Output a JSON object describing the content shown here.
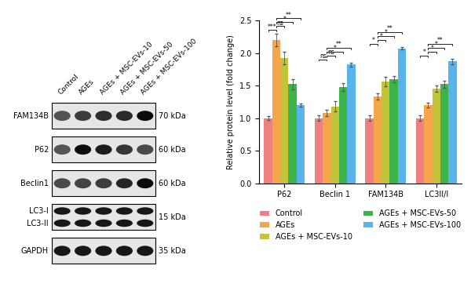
{
  "blot": {
    "lanes": [
      "Control",
      "AGEs",
      "AGEs + MSC-EVs-10",
      "AGEs + MSC-EVs-50",
      "AGEs + MSC-EVs-100"
    ],
    "rows": [
      {
        "labels": [
          "FAM134B"
        ],
        "kda": "70 kDa"
      },
      {
        "labels": [
          "P62"
        ],
        "kda": "60 kDa"
      },
      {
        "labels": [
          "Beclin1"
        ],
        "kda": "60 kDa"
      },
      {
        "labels": [
          "LC3-I",
          "LC3-II"
        ],
        "kda": "15 kDa"
      },
      {
        "labels": [
          "GAPDH"
        ],
        "kda": "35 kDa"
      }
    ]
  },
  "chart_data": {
    "type": "bar",
    "y_label": "Relative protein level (fold change)",
    "categories": [
      "P62",
      "Beclin 1",
      "FAM134B",
      "LC3II/I"
    ],
    "ylim": [
      0,
      2.5
    ],
    "yticks": [
      {
        "value": 0,
        "label": "0.0"
      },
      {
        "value": 0.5,
        "label": "0.5"
      },
      {
        "value": 1.0,
        "label": "1.0"
      },
      {
        "value": 1.5,
        "label": "1.5"
      },
      {
        "value": 2.0,
        "label": "2.0"
      },
      {
        "value": 2.5,
        "label": "2.5"
      }
    ],
    "legend": "bottom",
    "series": [
      {
        "name": "Control",
        "color": "#f08080",
        "values": [
          1.0,
          1.0,
          1.0,
          1.0
        ],
        "errors": [
          0.03,
          0.04,
          0.04,
          0.04
        ]
      },
      {
        "name": "AGEs",
        "color": "#f5a54a",
        "values": [
          2.2,
          1.08,
          1.33,
          1.2
        ],
        "errors": [
          0.1,
          0.05,
          0.05,
          0.04
        ]
      },
      {
        "name": "AGEs + MSC-EVs-10",
        "color": "#c4c43a",
        "values": [
          1.92,
          1.18,
          1.56,
          1.45
        ],
        "errors": [
          0.1,
          0.08,
          0.07,
          0.05
        ]
      },
      {
        "name": "AGEs + MSC-EVs-50",
        "color": "#3cb44a",
        "values": [
          1.52,
          1.48,
          1.6,
          1.52
        ],
        "errors": [
          0.08,
          0.06,
          0.05,
          0.05
        ]
      },
      {
        "name": "AGEs + MSC-EVs-100",
        "color": "#5ab4ec",
        "values": [
          1.2,
          1.82,
          2.07,
          1.87
        ],
        "errors": [
          0.03,
          0.03,
          0.02,
          0.04
        ]
      }
    ],
    "annotations": [
      {
        "category": "P62",
        "from": "Control",
        "to": "AGEs",
        "label": "***"
      },
      {
        "category": "P62",
        "from": "AGEs",
        "to": "AGEs + MSC-EVs-10",
        "label": "ns"
      },
      {
        "category": "P62",
        "from": "AGEs",
        "to": "AGEs + MSC-EVs-50",
        "label": "*"
      },
      {
        "category": "P62",
        "from": "AGEs",
        "to": "AGEs + MSC-EVs-100",
        "label": "**"
      },
      {
        "category": "Beclin 1",
        "from": "Control",
        "to": "AGEs",
        "label": "ns"
      },
      {
        "category": "Beclin 1",
        "from": "AGEs",
        "to": "AGEs + MSC-EVs-10",
        "label": "ns"
      },
      {
        "category": "Beclin 1",
        "from": "AGEs",
        "to": "AGEs + MSC-EVs-50",
        "label": "*"
      },
      {
        "category": "Beclin 1",
        "from": "AGEs",
        "to": "AGEs + MSC-EVs-100",
        "label": "**"
      },
      {
        "category": "FAM134B",
        "from": "Control",
        "to": "AGEs",
        "label": "*"
      },
      {
        "category": "FAM134B",
        "from": "AGEs",
        "to": "AGEs + MSC-EVs-10",
        "label": "*"
      },
      {
        "category": "FAM134B",
        "from": "AGEs",
        "to": "AGEs + MSC-EVs-50",
        "label": "*"
      },
      {
        "category": "FAM134B",
        "from": "AGEs",
        "to": "AGEs + MSC-EVs-100",
        "label": "**"
      },
      {
        "category": "LC3II/I",
        "from": "Control",
        "to": "AGEs",
        "label": "*"
      },
      {
        "category": "LC3II/I",
        "from": "AGEs",
        "to": "AGEs + MSC-EVs-10",
        "label": "*"
      },
      {
        "category": "LC3II/I",
        "from": "AGEs",
        "to": "AGEs + MSC-EVs-50",
        "label": "*"
      },
      {
        "category": "LC3II/I",
        "from": "AGEs",
        "to": "AGEs + MSC-EVs-100",
        "label": "**"
      }
    ]
  }
}
